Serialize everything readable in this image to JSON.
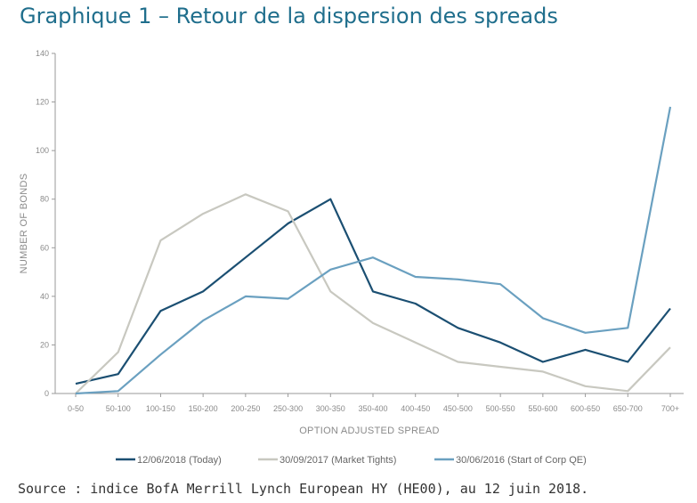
{
  "page": {
    "title": "Graphique 1 – Retour de la dispersion des spreads",
    "source": "Source : indice BofA Merrill Lynch European HY (HE00), au 12 juin 2018."
  },
  "chart_data": {
    "type": "line",
    "xlabel": "OPTION ADJUSTED SPREAD",
    "ylabel": "NUMBER OF BONDS",
    "ylim": [
      0,
      140
    ],
    "yticks": [
      0,
      20,
      40,
      60,
      80,
      100,
      120,
      140
    ],
    "grid": false,
    "legend_position": "bottom",
    "categories": [
      "0-50",
      "50-100",
      "100-150",
      "150-200",
      "200-250",
      "250-300",
      "300-350",
      "350-400",
      "400-450",
      "450-500",
      "500-550",
      "550-600",
      "600-650",
      "650-700",
      "700+"
    ],
    "series": [
      {
        "name": "12/06/2018 (Today)",
        "color": "#1b4f72",
        "values": [
          4,
          8,
          34,
          42,
          56,
          70,
          80,
          42,
          37,
          27,
          21,
          13,
          18,
          13,
          35
        ]
      },
      {
        "name": "30/09/2017 (Market Tights)",
        "color": "#c8c8c0",
        "values": [
          0,
          17,
          63,
          74,
          82,
          75,
          42,
          29,
          21,
          13,
          11,
          9,
          3,
          1,
          19
        ]
      },
      {
        "name": "30/06/2016 (Start of Corp QE)",
        "color": "#6aa0c0",
        "values": [
          0,
          1,
          16,
          30,
          40,
          39,
          51,
          56,
          48,
          47,
          45,
          31,
          25,
          27,
          118
        ]
      }
    ]
  }
}
